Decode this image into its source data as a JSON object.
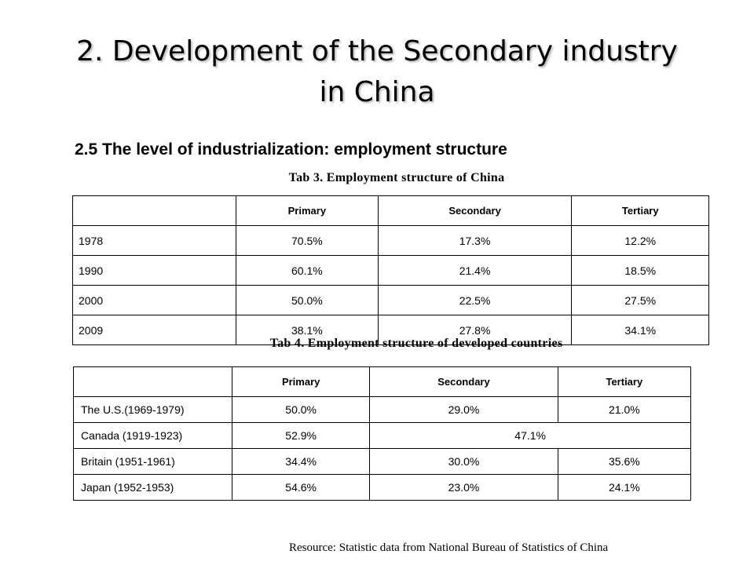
{
  "slide": {
    "title_line1": "2. Development of the Secondary industry",
    "title_line2": "in China",
    "subtitle": "2.5 The level of industrialization: employment structure",
    "source": "Resource: Statistic data from National Bureau of Statistics of China"
  },
  "tab3": {
    "caption": "Tab 3. Employment structure of China",
    "headers": [
      "",
      "Primary",
      "Secondary",
      "Tertiary"
    ],
    "rows": [
      [
        "1978",
        "70.5%",
        "17.3%",
        "12.2%"
      ],
      [
        "1990",
        "60.1%",
        "21.4%",
        "18.5%"
      ],
      [
        "2000",
        "50.0%",
        "22.5%",
        "27.5%"
      ],
      [
        "2009",
        "38.1%",
        "27.8%",
        "34.1%"
      ]
    ]
  },
  "tab4": {
    "caption": "Tab 4. Employment structure of developed countries",
    "headers": [
      "",
      "Primary",
      "Secondary",
      "Tertiary"
    ],
    "rows": [
      [
        "The U.S.(1969-1979)",
        "50.0%",
        "29.0%",
        "21.0%"
      ],
      [
        "Canada (1919-1923)",
        "52.9%",
        "47.1%"
      ],
      [
        "Britain (1951-1961)",
        "34.4%",
        "30.0%",
        "35.6%"
      ],
      [
        "Japan (1952-1953)",
        "54.6%",
        "23.0%",
        "24.1%"
      ]
    ]
  }
}
